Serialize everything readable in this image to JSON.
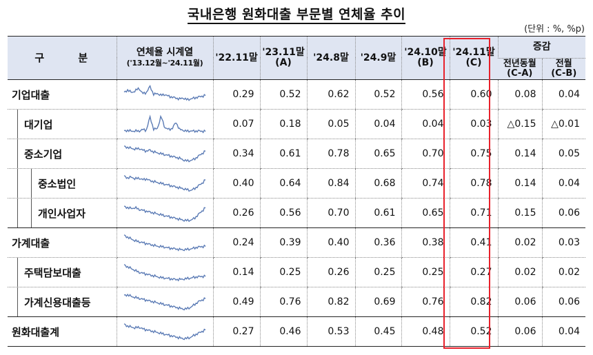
{
  "title": "국내은행 원화대출 부문별 연체율 추이",
  "unit": "(단위 : %, %p)",
  "header": {
    "category": "구 분",
    "series_line1": "연체율 시계열",
    "series_line2": "('13.12월~'24.11월)",
    "cols": [
      {
        "line1": "'22.11말",
        "line2": ""
      },
      {
        "line1": "'23.11말",
        "line2": "(A)"
      },
      {
        "line1": "'24.8말",
        "line2": ""
      },
      {
        "line1": "'24.9말",
        "line2": ""
      },
      {
        "line1": "'24.10말",
        "line2": "(B)"
      },
      {
        "line1": "'24.11말",
        "line2": "(C)"
      }
    ],
    "change": "증감",
    "change_yoy_line1": "전년동월",
    "change_yoy_line2": "(C-A)",
    "change_mom_line1": "전월",
    "change_mom_line2": "(C-B)"
  },
  "rows": [
    {
      "name": "기업대출",
      "values": [
        "0.29",
        "0.52",
        "0.62",
        "0.52",
        "0.56",
        "0.60"
      ],
      "yoy": "0.08",
      "mom": "0.04"
    },
    {
      "name": "대기업",
      "values": [
        "0.07",
        "0.18",
        "0.05",
        "0.04",
        "0.04",
        "0.03"
      ],
      "yoy": "△0.15",
      "mom": "△0.01"
    },
    {
      "name": "중소기업",
      "values": [
        "0.34",
        "0.61",
        "0.78",
        "0.65",
        "0.70",
        "0.75"
      ],
      "yoy": "0.14",
      "mom": "0.05"
    },
    {
      "name": "중소법인",
      "values": [
        "0.40",
        "0.64",
        "0.84",
        "0.68",
        "0.74",
        "0.78"
      ],
      "yoy": "0.14",
      "mom": "0.04"
    },
    {
      "name": "개인사업자",
      "values": [
        "0.26",
        "0.56",
        "0.70",
        "0.61",
        "0.65",
        "0.71"
      ],
      "yoy": "0.15",
      "mom": "0.06"
    },
    {
      "name": "가계대출",
      "values": [
        "0.24",
        "0.39",
        "0.40",
        "0.36",
        "0.38",
        "0.41"
      ],
      "yoy": "0.02",
      "mom": "0.03"
    },
    {
      "name": "주택담보대출",
      "values": [
        "0.14",
        "0.25",
        "0.26",
        "0.25",
        "0.25",
        "0.27"
      ],
      "yoy": "0.02",
      "mom": "0.02"
    },
    {
      "name": "가계신용대출등",
      "values": [
        "0.49",
        "0.76",
        "0.82",
        "0.69",
        "0.76",
        "0.82"
      ],
      "yoy": "0.06",
      "mom": "0.06"
    },
    {
      "name": "원화대출계",
      "values": [
        "0.27",
        "0.46",
        "0.53",
        "0.45",
        "0.48",
        "0.52"
      ],
      "yoy": "0.06",
      "mom": "0.04"
    }
  ],
  "sparkline_color": "#5b7bb5",
  "highlight_color": "#e8202a"
}
